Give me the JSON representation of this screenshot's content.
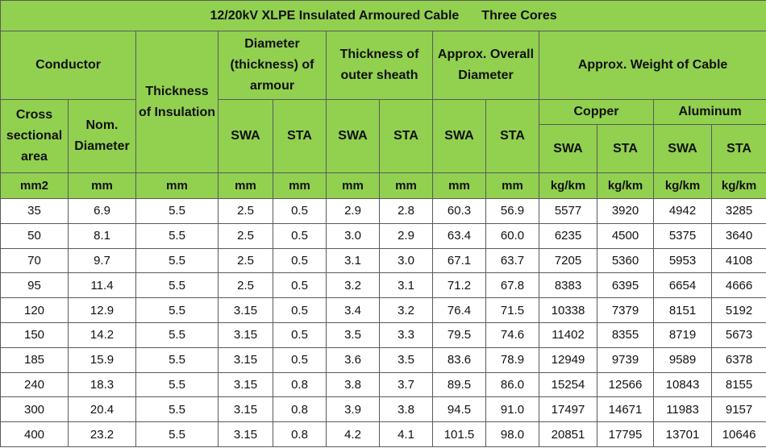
{
  "title": {
    "main": "12/20kV XLPE Insulated Armoured Cable",
    "cores": "Three Cores"
  },
  "headers": {
    "conductor": "Conductor",
    "cross_sectional_area": "Cross sectional area",
    "nom_diameter": "Nom. Diameter",
    "thickness_insulation": "Thickness of Insulation",
    "diameter_armour": "Diameter (thickness) of armour",
    "thickness_sheath": "Thickness of outer sheath",
    "overall_diameter": "Approx. Overall Diameter",
    "weight": "Approx. Weight of Cable",
    "copper": "Copper",
    "aluminum": "Aluminum",
    "swa": "SWA",
    "sta": "STA"
  },
  "units": [
    "mm2",
    "mm",
    "mm",
    "mm",
    "mm",
    "mm",
    "mm",
    "mm",
    "mm",
    "kg/km",
    "kg/km",
    "kg/km",
    "kg/km"
  ],
  "rows": [
    [
      "35",
      "6.9",
      "5.5",
      "2.5",
      "0.5",
      "2.9",
      "2.8",
      "60.3",
      "56.9",
      "5577",
      "3920",
      "4942",
      "3285"
    ],
    [
      "50",
      "8.1",
      "5.5",
      "2.5",
      "0.5",
      "3.0",
      "2.9",
      "63.4",
      "60.0",
      "6235",
      "4500",
      "5375",
      "3640"
    ],
    [
      "70",
      "9.7",
      "5.5",
      "2.5",
      "0.5",
      "3.1",
      "3.0",
      "67.1",
      "63.7",
      "7205",
      "5360",
      "5953",
      "4108"
    ],
    [
      "95",
      "11.4",
      "5.5",
      "2.5",
      "0.5",
      "3.2",
      "3.1",
      "71.2",
      "67.8",
      "8383",
      "6395",
      "6654",
      "4666"
    ],
    [
      "120",
      "12.9",
      "5.5",
      "3.15",
      "0.5",
      "3.4",
      "3.2",
      "76.4",
      "71.5",
      "10338",
      "7379",
      "8151",
      "5192"
    ],
    [
      "150",
      "14.2",
      "5.5",
      "3.15",
      "0.5",
      "3.5",
      "3.3",
      "79.5",
      "74.6",
      "11402",
      "8355",
      "8719",
      "5673"
    ],
    [
      "185",
      "15.9",
      "5.5",
      "3.15",
      "0.5",
      "3.6",
      "3.5",
      "83.6",
      "78.9",
      "12949",
      "9739",
      "9589",
      "6378"
    ],
    [
      "240",
      "18.3",
      "5.5",
      "3.15",
      "0.8",
      "3.8",
      "3.7",
      "89.5",
      "86.0",
      "15254",
      "12566",
      "10843",
      "8155"
    ],
    [
      "300",
      "20.4",
      "5.5",
      "3.15",
      "0.8",
      "3.9",
      "3.8",
      "94.5",
      "91.0",
      "17497",
      "14671",
      "11983",
      "9157"
    ],
    [
      "400",
      "23.2",
      "5.5",
      "3.15",
      "0.8",
      "4.2",
      "4.1",
      "101.5",
      "98.0",
      "20851",
      "17795",
      "13701",
      "10646"
    ]
  ],
  "colors": {
    "header_green": "#92d050",
    "border": "#5a5a5a"
  }
}
